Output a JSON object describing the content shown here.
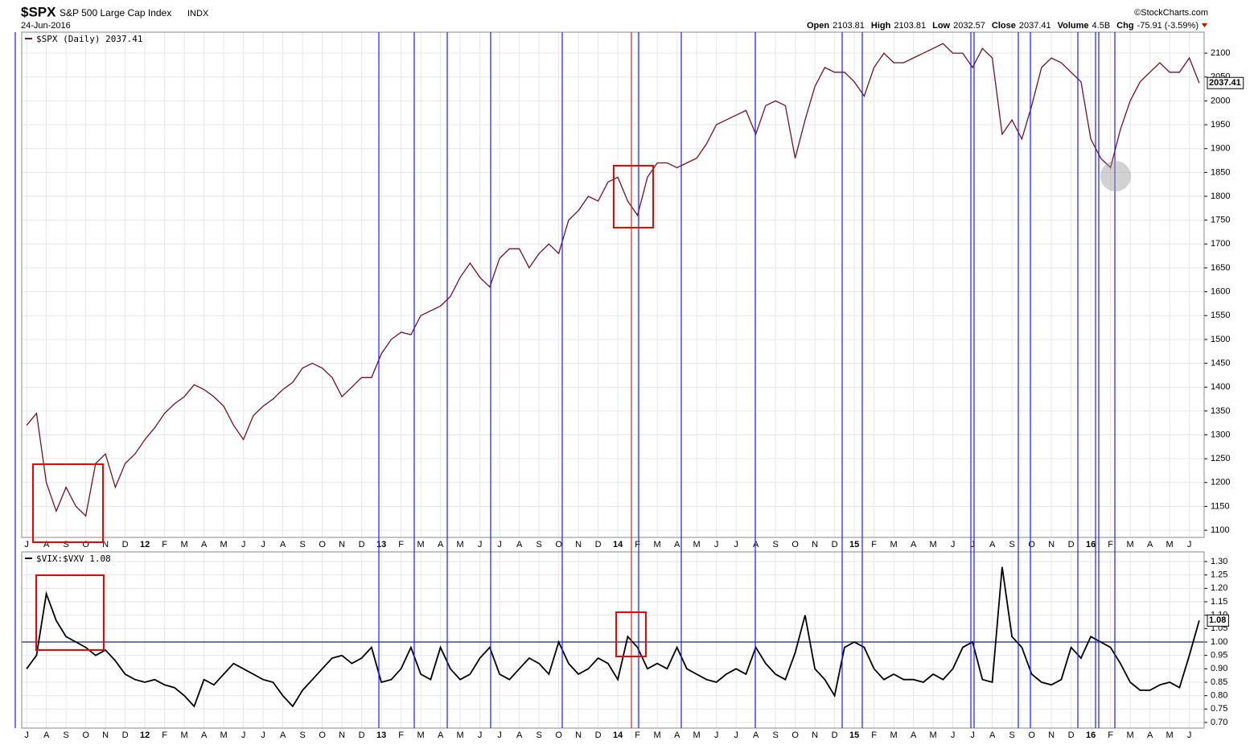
{
  "header": {
    "symbol": "$SPX",
    "name": "S&P 500 Large Cap Index",
    "exchange": "INDX",
    "date": "24-Jun-2016",
    "source": "©StockCharts.com",
    "quote": [
      {
        "label": "Open",
        "value": "2103.81"
      },
      {
        "label": "High",
        "value": "2103.81"
      },
      {
        "label": "Low",
        "value": "2032.57"
      },
      {
        "label": "Close",
        "value": "2037.41"
      },
      {
        "label": "Volume",
        "value": "4.5B"
      },
      {
        "label": "Chg",
        "value": "-75.91 (-3.59%)"
      }
    ]
  },
  "chart_data": [
    {
      "type": "line",
      "categories": [
        "J",
        null,
        "A",
        null,
        "S",
        null,
        "O",
        null,
        "N",
        null,
        "D",
        null,
        "12",
        null,
        "F",
        null,
        "M",
        null,
        "A",
        null,
        "M",
        null,
        "J",
        null,
        "J",
        null,
        "A",
        null,
        "S",
        null,
        "O",
        null,
        "N",
        null,
        "D",
        null,
        "13",
        null,
        "F",
        null,
        "M",
        null,
        "A",
        null,
        "M",
        null,
        "J",
        null,
        "J",
        null,
        "A",
        null,
        "S",
        null,
        "O",
        null,
        "N",
        null,
        "D",
        null,
        "14",
        null,
        "F",
        null,
        "M",
        null,
        "A",
        null,
        "M",
        null,
        "J",
        null,
        "J",
        null,
        "A",
        null,
        "S",
        null,
        "O",
        null,
        "N",
        null,
        "D",
        null,
        "15",
        null,
        "F",
        null,
        "M",
        null,
        "A",
        null,
        "M",
        null,
        "J",
        null,
        "J",
        null,
        "A",
        null,
        "S",
        null,
        "O",
        null,
        "N",
        null,
        "D",
        null,
        "16",
        null,
        "F",
        null,
        "M",
        null,
        "A",
        null,
        "M",
        null,
        "J",
        null
      ],
      "series": [
        {
          "name": "$SPX (Daily) 2037.41",
          "color": "#6a1424",
          "values": [
            1320,
            1345,
            1200,
            1140,
            1190,
            1150,
            1130,
            1240,
            1260,
            1190,
            1240,
            1260,
            1290,
            1315,
            1345,
            1365,
            1380,
            1405,
            1395,
            1380,
            1360,
            1320,
            1290,
            1340,
            1360,
            1375,
            1395,
            1410,
            1440,
            1450,
            1440,
            1420,
            1380,
            1400,
            1420,
            1420,
            1470,
            1500,
            1515,
            1510,
            1550,
            1560,
            1570,
            1590,
            1630,
            1660,
            1630,
            1610,
            1670,
            1690,
            1690,
            1650,
            1680,
            1700,
            1680,
            1750,
            1770,
            1800,
            1790,
            1830,
            1840,
            1790,
            1760,
            1840,
            1870,
            1870,
            1860,
            1870,
            1880,
            1910,
            1950,
            1960,
            1970,
            1980,
            1930,
            1990,
            2000,
            1990,
            1880,
            1960,
            2030,
            2070,
            2060,
            2060,
            2040,
            2010,
            2070,
            2100,
            2080,
            2080,
            2090,
            2100,
            2110,
            2120,
            2100,
            2100,
            2070,
            2110,
            2090,
            1930,
            1960,
            1920,
            1990,
            2070,
            2090,
            2080,
            2060,
            2040,
            1920,
            1880,
            1860,
            1940,
            2000,
            2040,
            2060,
            2080,
            2060,
            2060,
            2090,
            2037.41
          ]
        }
      ],
      "ylim": [
        1085,
        2144
      ],
      "yticks": [
        1100,
        1150,
        1200,
        1250,
        1300,
        1350,
        1400,
        1450,
        1500,
        1550,
        1600,
        1650,
        1700,
        1750,
        1800,
        1850,
        1900,
        1950,
        2000,
        2050,
        2100
      ],
      "grid": true
    },
    {
      "type": "line",
      "series": [
        {
          "name": "$VIX:$VXV 1.08",
          "color": "#000000",
          "values": [
            0.9,
            0.95,
            1.18,
            1.08,
            1.02,
            1.0,
            0.98,
            0.95,
            0.97,
            0.93,
            0.88,
            0.86,
            0.85,
            0.86,
            0.84,
            0.83,
            0.8,
            0.76,
            0.86,
            0.84,
            0.88,
            0.92,
            0.9,
            0.88,
            0.86,
            0.85,
            0.8,
            0.76,
            0.82,
            0.86,
            0.9,
            0.94,
            0.95,
            0.92,
            0.94,
            0.98,
            0.85,
            0.86,
            0.9,
            0.98,
            0.88,
            0.86,
            0.98,
            0.9,
            0.86,
            0.88,
            0.94,
            0.98,
            0.88,
            0.86,
            0.9,
            0.94,
            0.92,
            0.88,
            1.0,
            0.92,
            0.88,
            0.9,
            0.94,
            0.92,
            0.86,
            1.02,
            0.98,
            0.9,
            0.92,
            0.9,
            0.98,
            0.9,
            0.88,
            0.86,
            0.85,
            0.88,
            0.9,
            0.88,
            0.98,
            0.92,
            0.88,
            0.86,
            0.96,
            1.1,
            0.9,
            0.86,
            0.8,
            0.98,
            1.0,
            0.98,
            0.9,
            0.86,
            0.88,
            0.86,
            0.86,
            0.85,
            0.88,
            0.86,
            0.9,
            0.98,
            1.0,
            0.86,
            0.85,
            1.28,
            1.02,
            0.98,
            0.88,
            0.85,
            0.84,
            0.86,
            0.98,
            0.94,
            1.02,
            1.0,
            0.98,
            0.92,
            0.85,
            0.82,
            0.82,
            0.84,
            0.85,
            0.83,
            0.95,
            1.08
          ]
        }
      ],
      "ylim": [
        0.679,
        1.336
      ],
      "yticks": [
        {
          "value": 0.7,
          "label": "0.70"
        },
        {
          "value": 0.75,
          "label": "0.75"
        },
        {
          "value": 0.8,
          "label": "0.80"
        },
        {
          "value": 0.85,
          "label": "0.85"
        },
        {
          "value": 0.9,
          "label": "0.90"
        },
        {
          "value": 0.95,
          "label": "0.95"
        },
        {
          "value": 1,
          "label": "1.00"
        },
        {
          "value": 1.05,
          "label": "1.05"
        },
        {
          "value": 1.1,
          "label": "1.10"
        },
        {
          "value": 1.15,
          "label": "1.15"
        },
        {
          "value": 1.2,
          "label": "1.20"
        },
        {
          "value": 1.25,
          "label": "1.25"
        },
        {
          "value": 1.3,
          "label": "1.30"
        }
      ],
      "grid": true
    }
  ]
}
